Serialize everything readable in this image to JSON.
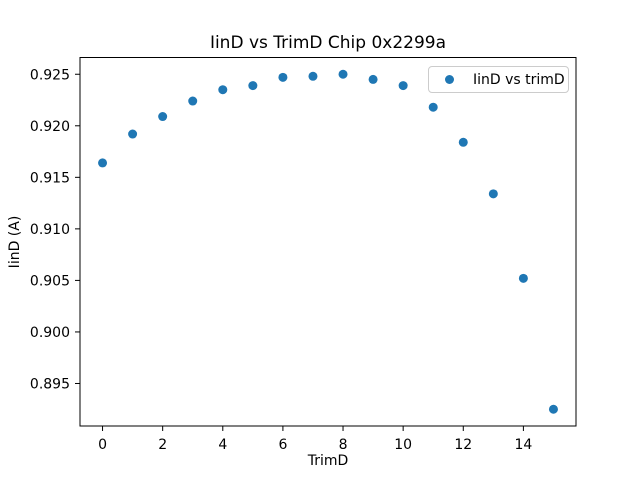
{
  "chart_data": {
    "type": "scatter",
    "title": "IinD vs TrimD Chip 0x2299a",
    "xlabel": "TrimD",
    "ylabel": "IinD (A)",
    "legend": {
      "label": "IinD vs trimD",
      "position": "upper right"
    },
    "marker_color": "#1f77b4",
    "background": "#ffffff",
    "grid": false,
    "x": [
      0,
      1,
      2,
      3,
      4,
      5,
      6,
      7,
      8,
      9,
      10,
      11,
      12,
      13,
      14,
      15
    ],
    "y": [
      0.9164,
      0.9192,
      0.9209,
      0.9224,
      0.9235,
      0.9239,
      0.9247,
      0.9248,
      0.925,
      0.9245,
      0.9239,
      0.9218,
      0.9184,
      0.9134,
      0.9052,
      0.8925
    ],
    "xlim": [
      -0.75,
      15.75
    ],
    "ylim": [
      0.890875,
      0.926625
    ],
    "xticks": {
      "values": [
        0,
        2,
        4,
        6,
        8,
        10,
        12,
        14
      ],
      "labels": [
        "0",
        "2",
        "4",
        "6",
        "8",
        "10",
        "12",
        "14"
      ]
    },
    "yticks": {
      "values": [
        0.895,
        0.9,
        0.905,
        0.91,
        0.915,
        0.92,
        0.925
      ],
      "labels": [
        "0.895",
        "0.900",
        "0.905",
        "0.910",
        "0.915",
        "0.920",
        "0.925"
      ]
    }
  }
}
